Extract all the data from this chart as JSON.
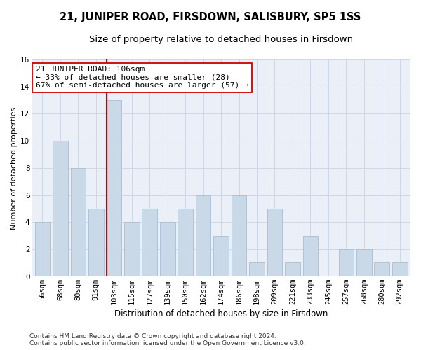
{
  "title": "21, JUNIPER ROAD, FIRSDOWN, SALISBURY, SP5 1SS",
  "subtitle": "Size of property relative to detached houses in Firsdown",
  "xlabel": "Distribution of detached houses by size in Firsdown",
  "ylabel": "Number of detached properties",
  "categories": [
    "56sqm",
    "68sqm",
    "80sqm",
    "91sqm",
    "103sqm",
    "115sqm",
    "127sqm",
    "139sqm",
    "150sqm",
    "162sqm",
    "174sqm",
    "186sqm",
    "198sqm",
    "209sqm",
    "221sqm",
    "233sqm",
    "245sqm",
    "257sqm",
    "268sqm",
    "280sqm",
    "292sqm"
  ],
  "values": [
    4,
    10,
    8,
    5,
    13,
    4,
    5,
    4,
    5,
    6,
    3,
    6,
    1,
    5,
    1,
    3,
    0,
    2,
    2,
    1,
    1
  ],
  "bar_color": "#c9d9e8",
  "bar_edge_color": "#a8bfd4",
  "highlight_index": 4,
  "highlight_line_color": "#cc0000",
  "annotation_line1": "21 JUNIPER ROAD: 106sqm",
  "annotation_line2": "← 33% of detached houses are smaller (28)",
  "annotation_line3": "67% of semi-detached houses are larger (57) →",
  "annotation_box_color": "#ffffff",
  "annotation_box_edge": "#cc0000",
  "grid_color": "#cdd8e8",
  "background_color": "#eaeff8",
  "ylim": [
    0,
    16
  ],
  "yticks": [
    0,
    2,
    4,
    6,
    8,
    10,
    12,
    14,
    16
  ],
  "footer_line1": "Contains HM Land Registry data © Crown copyright and database right 2024.",
  "footer_line2": "Contains public sector information licensed under the Open Government Licence v3.0.",
  "title_fontsize": 10.5,
  "subtitle_fontsize": 9.5,
  "xlabel_fontsize": 8.5,
  "ylabel_fontsize": 8,
  "tick_fontsize": 7.5,
  "annotation_fontsize": 8,
  "footer_fontsize": 6.5
}
